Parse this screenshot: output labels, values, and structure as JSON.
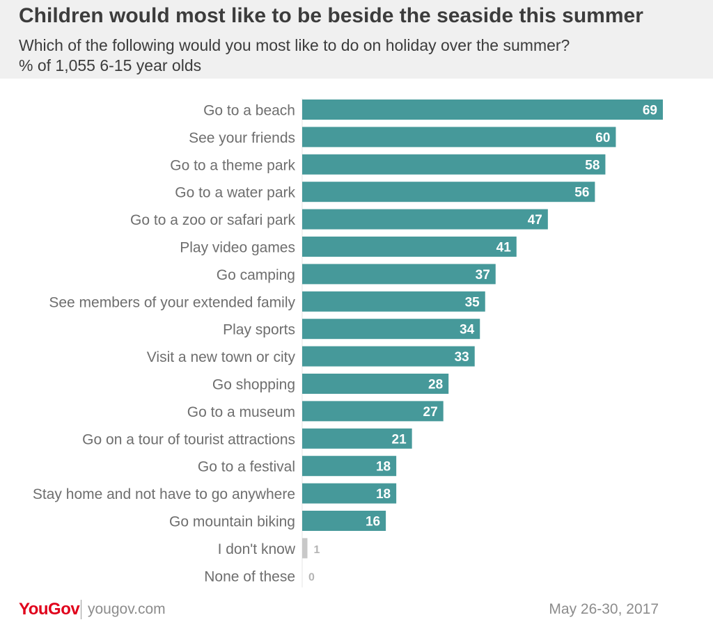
{
  "header": {
    "title": "Children would most like to be beside the seaside this summer",
    "subtitle": "Which of the following would you most like to do on holiday over the summer?",
    "base": "% of 1,055 6-15 year olds"
  },
  "footer": {
    "brand": "YouGov",
    "site": "yougov.com",
    "date": "May 26-30, 2017"
  },
  "colors": {
    "bar": "#46999a",
    "bar_muted": "#c8c8c8",
    "label": "#6e6e6e",
    "value_inside": "#ffffff",
    "value_outside": "#b4b4b4"
  },
  "chart_data": {
    "type": "bar",
    "orientation": "horizontal",
    "categories": [
      "Go to a beach",
      "See your friends",
      "Go to a theme park",
      "Go to a water park",
      "Go to a zoo or safari park",
      "Play video games",
      "Go camping",
      "See members of your extended family",
      "Play sports",
      "Visit a new town or city",
      "Go shopping",
      "Go to a museum",
      "Go on a tour of tourist attractions",
      "Go to a festival",
      "Stay home and not have to go anywhere",
      "Go mountain biking",
      "I don't know",
      "None of these"
    ],
    "values": [
      69,
      60,
      58,
      56,
      47,
      41,
      37,
      35,
      34,
      33,
      28,
      27,
      21,
      18,
      18,
      16,
      1,
      0
    ],
    "muted_categories": [
      "I don't know",
      "None of these"
    ],
    "xlim": [
      0,
      69
    ],
    "grid": false,
    "legend": "none"
  }
}
